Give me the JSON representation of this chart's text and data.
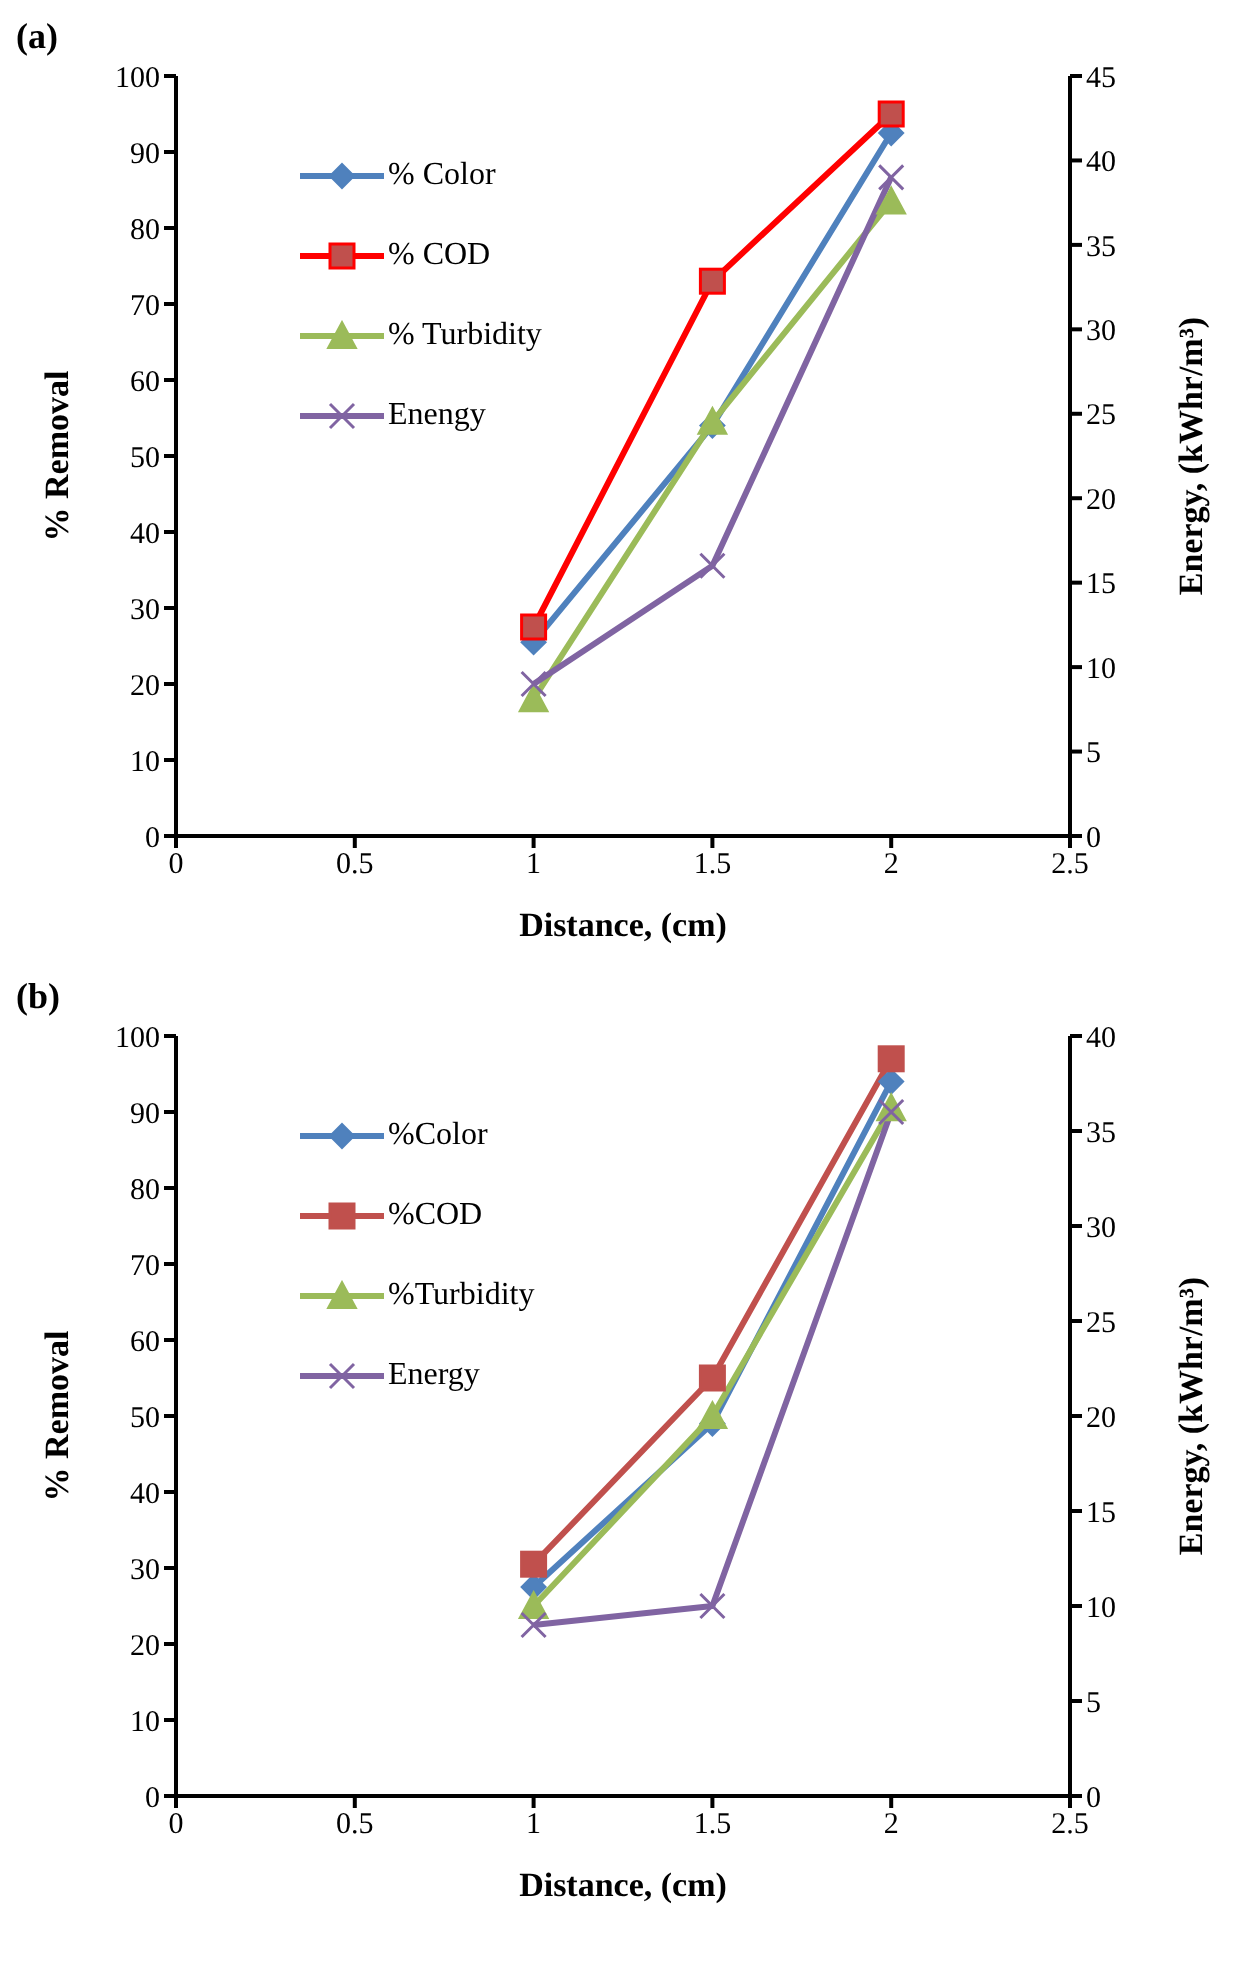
{
  "chart_data": [
    {
      "type": "line",
      "title": "(a)",
      "xlabel": "Distance, (cm)",
      "ylabel": "% Removal",
      "y2label": "Energy, (kWhr/m³)",
      "x": [
        1,
        1.5,
        2
      ],
      "xlim": [
        0,
        2.5
      ],
      "xticks": [
        0,
        0.5,
        1,
        1.5,
        2,
        2.5
      ],
      "ylim": [
        0,
        100
      ],
      "yticks": [
        0,
        10,
        20,
        30,
        40,
        50,
        60,
        70,
        80,
        90,
        100
      ],
      "y2lim": [
        0,
        45
      ],
      "y2ticks": [
        0,
        5,
        10,
        15,
        20,
        25,
        30,
        35,
        40,
        45
      ],
      "grid": false,
      "legend": "top left",
      "series": [
        {
          "name": "% Color",
          "color": "#4f81bd",
          "marker": "diamond",
          "values": [
            25.5,
            54,
            92.5
          ]
        },
        {
          "name": "% COD",
          "color": "#ff0000",
          "marker": "square",
          "values": [
            27.5,
            73,
            95
          ]
        },
        {
          "name": "% Turbidity",
          "color": "#9bbb59",
          "marker": "triangle",
          "values": [
            18,
            54.5,
            83.5
          ]
        },
        {
          "name": "Enengy",
          "color": "#8064a2",
          "marker": "cross",
          "axis": "y2",
          "values": [
            9,
            16,
            39
          ]
        }
      ]
    },
    {
      "type": "line",
      "title": "(b)",
      "xlabel": "Distance, (cm)",
      "ylabel": "% Removal",
      "y2label": "Energy,  (kWhr/m³)",
      "x": [
        1,
        1.5,
        2
      ],
      "xlim": [
        0,
        2.5
      ],
      "xticks": [
        0,
        0.5,
        1,
        1.5,
        2,
        2.5
      ],
      "ylim": [
        0,
        100
      ],
      "yticks": [
        0,
        10,
        20,
        30,
        40,
        50,
        60,
        70,
        80,
        90,
        100
      ],
      "y2lim": [
        0,
        40
      ],
      "y2ticks": [
        0,
        5,
        10,
        15,
        20,
        25,
        30,
        35,
        40
      ],
      "grid": false,
      "legend": "top left",
      "series": [
        {
          "name": "%Color",
          "color": "#4f81bd",
          "marker": "diamond",
          "values": [
            27.5,
            49,
            94
          ]
        },
        {
          "name": "%COD",
          "color": "#c0504d",
          "marker": "square",
          "values": [
            30.5,
            55,
            97
          ]
        },
        {
          "name": "%Turbidity",
          "color": "#9bbb59",
          "marker": "triangle",
          "values": [
            25,
            50,
            90.5
          ]
        },
        {
          "name": "Energy",
          "color": "#8064a2",
          "marker": "cross",
          "axis": "y2",
          "values": [
            9,
            10,
            36
          ]
        }
      ]
    }
  ]
}
